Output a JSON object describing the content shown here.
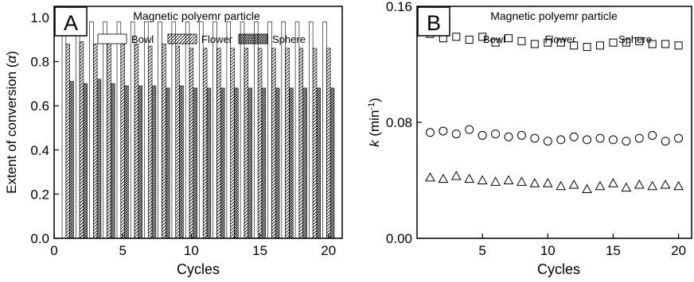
{
  "chart_data": [
    {
      "panel": "A",
      "type": "bar",
      "title": "Magnetic polyemr particle",
      "xlabel": "Cycles",
      "ylabel": "Extent of conversion (α)",
      "xlim": [
        0,
        21
      ],
      "ylim": [
        0.0,
        1.05
      ],
      "xticks": [
        "0",
        "5",
        "10",
        "15",
        "20"
      ],
      "yticks": [
        "0.0",
        "0.2",
        "0.4",
        "0.6",
        "0.8",
        "1.0"
      ],
      "legend_placement": "top",
      "categories": [
        1,
        2,
        3,
        4,
        5,
        6,
        7,
        8,
        9,
        10,
        11,
        12,
        13,
        14,
        15,
        16,
        17,
        18,
        19,
        20
      ],
      "series": [
        {
          "name": "Bowl",
          "pattern": "open",
          "values": [
            0.98,
            0.98,
            0.98,
            0.98,
            0.98,
            0.98,
            0.98,
            0.98,
            0.98,
            0.98,
            0.98,
            0.98,
            0.98,
            0.98,
            0.98,
            0.98,
            0.98,
            0.98,
            0.98,
            0.98
          ]
        },
        {
          "name": "Flower",
          "pattern": "diagonal-hatch",
          "values": [
            0.88,
            0.89,
            0.88,
            0.89,
            0.88,
            0.88,
            0.87,
            0.88,
            0.87,
            0.86,
            0.86,
            0.86,
            0.86,
            0.86,
            0.86,
            0.86,
            0.86,
            0.86,
            0.86,
            0.86
          ]
        },
        {
          "name": "Sphere",
          "pattern": "cross-hatch",
          "values": [
            0.71,
            0.7,
            0.72,
            0.7,
            0.69,
            0.69,
            0.69,
            0.68,
            0.69,
            0.68,
            0.68,
            0.68,
            0.68,
            0.68,
            0.68,
            0.68,
            0.68,
            0.68,
            0.68,
            0.68
          ]
        }
      ]
    },
    {
      "panel": "B",
      "type": "scatter",
      "title": "Magnetic polyemr particle",
      "xlabel": "Cycles",
      "ylabel": "k (min-1)",
      "xlim": [
        0,
        21
      ],
      "ylim": [
        0.0,
        0.16
      ],
      "xticks": [
        "5",
        "10",
        "15",
        "20"
      ],
      "yticks": [
        "0.00",
        "0.08",
        "0.16"
      ],
      "legend_placement": "top",
      "x": [
        1,
        2,
        3,
        4,
        5,
        6,
        7,
        8,
        9,
        10,
        11,
        12,
        13,
        14,
        15,
        16,
        17,
        18,
        19,
        20
      ],
      "series": [
        {
          "name": "Bowl",
          "marker": "square",
          "values": [
            0.141,
            0.138,
            0.139,
            0.137,
            0.139,
            0.135,
            0.138,
            0.136,
            0.134,
            0.135,
            0.135,
            0.133,
            0.132,
            0.133,
            0.135,
            0.135,
            0.136,
            0.134,
            0.134,
            0.133
          ]
        },
        {
          "name": "Flower",
          "marker": "circle",
          "values": [
            0.073,
            0.074,
            0.072,
            0.075,
            0.071,
            0.072,
            0.07,
            0.071,
            0.069,
            0.067,
            0.068,
            0.07,
            0.068,
            0.069,
            0.068,
            0.067,
            0.069,
            0.071,
            0.067,
            0.069
          ]
        },
        {
          "name": "Sphere",
          "marker": "triangle",
          "values": [
            0.042,
            0.041,
            0.043,
            0.041,
            0.04,
            0.039,
            0.04,
            0.039,
            0.038,
            0.038,
            0.036,
            0.037,
            0.034,
            0.036,
            0.038,
            0.035,
            0.037,
            0.036,
            0.037,
            0.036
          ]
        }
      ]
    }
  ]
}
